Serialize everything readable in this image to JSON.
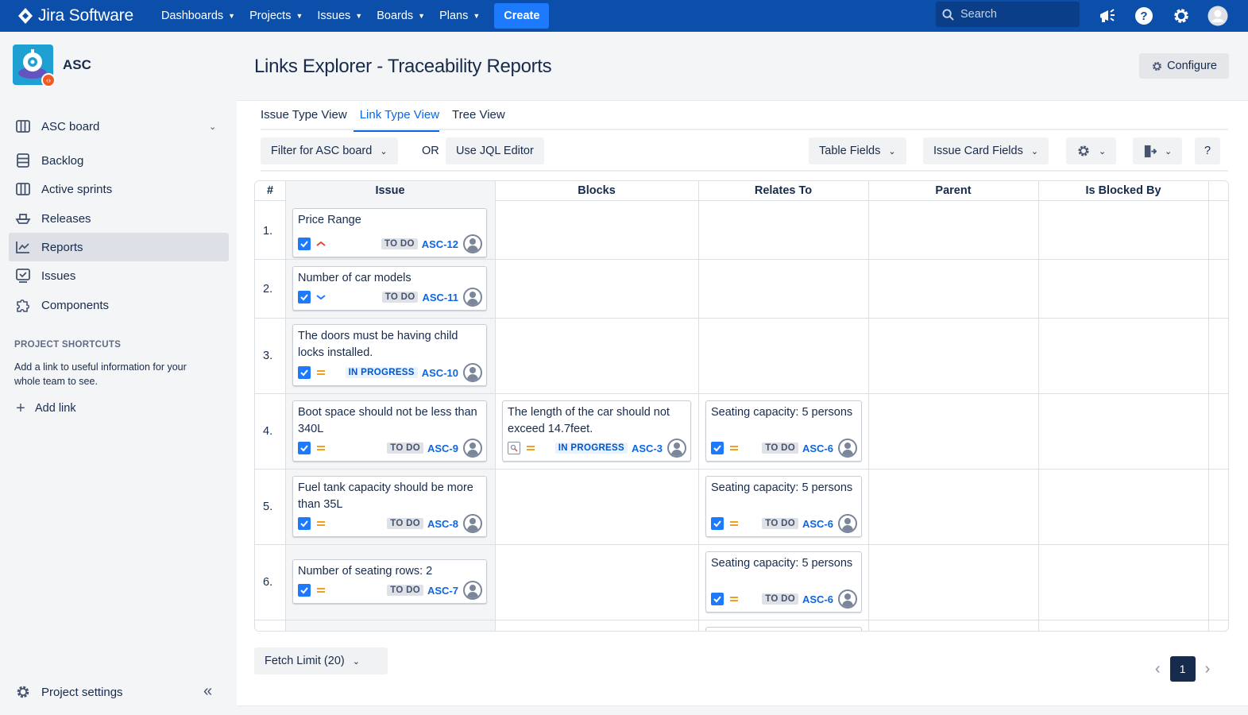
{
  "topbar": {
    "product": "Jira Software",
    "nav": [
      "Dashboards",
      "Projects",
      "Issues",
      "Boards",
      "Plans"
    ],
    "create_label": "Create",
    "search_placeholder": "Search",
    "color": "#0b4fab"
  },
  "sidebar": {
    "project_name": "ASC",
    "board_label": "ASC board",
    "items": [
      {
        "label": "Backlog",
        "icon": "backlog-icon"
      },
      {
        "label": "Active sprints",
        "icon": "board-icon"
      },
      {
        "label": "Releases",
        "icon": "ship-icon"
      },
      {
        "label": "Reports",
        "icon": "chart-icon",
        "active": true
      },
      {
        "label": "Issues",
        "icon": "issues-icon"
      },
      {
        "label": "Components",
        "icon": "puzzle-icon"
      }
    ],
    "shortcuts_title": "PROJECT SHORTCUTS",
    "shortcuts_text": "Add a link to useful information for your whole team to see.",
    "add_link": "Add link",
    "settings": "Project settings"
  },
  "header": {
    "title": "Links Explorer - Traceability Reports",
    "configure": "Configure"
  },
  "tabs": [
    {
      "label": "Issue Type View"
    },
    {
      "label": "Link Type View",
      "active": true
    },
    {
      "label": "Tree View"
    }
  ],
  "toolbar": {
    "filter": "Filter for ASC board",
    "or": "OR",
    "jql": "Use JQL Editor",
    "table_fields": "Table Fields",
    "card_fields": "Issue Card Fields",
    "help": "?"
  },
  "table": {
    "columns": [
      "#",
      "Issue",
      "Blocks",
      "Relates To",
      "Parent",
      "Is Blocked By"
    ],
    "rows": [
      {
        "num": "1.",
        "issue": {
          "title": "Price Range",
          "status": "TO DO",
          "key": "ASC-12",
          "priority": "high"
        }
      },
      {
        "num": "2.",
        "issue": {
          "title": "Number of car models",
          "status": "TO DO",
          "key": "ASC-11",
          "priority": "low"
        }
      },
      {
        "num": "3.",
        "issue": {
          "title": "The doors must be having child locks installed.",
          "status": "IN PROGRESS",
          "key": "ASC-10",
          "priority": "medium"
        }
      },
      {
        "num": "4.",
        "issue": {
          "title": "Boot space should not be less than 340L",
          "status": "TO DO",
          "key": "ASC-9",
          "priority": "medium"
        },
        "blocks": {
          "title": "The length of the car should not exceed 14.7feet.",
          "status": "IN PROGRESS",
          "key": "ASC-3",
          "priority": "medium"
        },
        "relates": {
          "title": "Seating capacity: 5 persons",
          "status": "TO DO",
          "key": "ASC-6",
          "priority": "medium"
        }
      },
      {
        "num": "5.",
        "issue": {
          "title": "Fuel tank capacity should be more than 35L",
          "status": "TO DO",
          "key": "ASC-8",
          "priority": "medium"
        },
        "relates": {
          "title": "Seating capacity: 5 persons",
          "status": "TO DO",
          "key": "ASC-6",
          "priority": "medium"
        }
      },
      {
        "num": "6.",
        "issue": {
          "title": "Number of seating rows: 2",
          "status": "TO DO",
          "key": "ASC-7",
          "priority": "medium"
        },
        "relates": {
          "title": "Seating capacity: 5 persons",
          "status": "TO DO",
          "key": "ASC-6",
          "priority": "medium"
        }
      }
    ]
  },
  "footer": {
    "fetch_limit": "Fetch Limit (20)",
    "page": "1"
  }
}
